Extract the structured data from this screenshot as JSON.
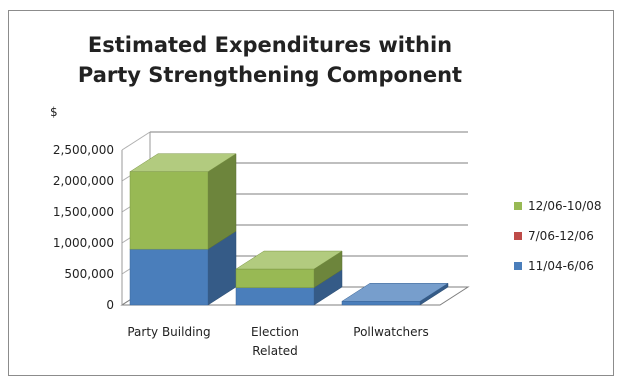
{
  "chart_data": {
    "type": "bar",
    "stacked": true,
    "three_d": true,
    "title": "Estimated Expenditures within Party Strengthening Component",
    "title_lines": [
      "Estimated Expenditures within",
      "Party Strengthening Component"
    ],
    "ylabel": "$",
    "ylim": [
      0,
      2500000
    ],
    "yticks": [
      "0",
      "500,000",
      "1,000,000",
      "1,500,000",
      "2,000,000",
      "2,500,000"
    ],
    "ytick_values": [
      0,
      500000,
      1000000,
      1500000,
      2000000,
      2500000
    ],
    "categories": [
      "Party Building",
      "Election Related",
      "Pollwatchers"
    ],
    "category_lines": [
      [
        "Party Building"
      ],
      [
        "Election",
        "Related"
      ],
      [
        "Pollwatchers"
      ]
    ],
    "series": [
      {
        "name": "11/04-6/06",
        "values": [
          900000,
          280000,
          60000
        ],
        "color": "#4a7ebb"
      },
      {
        "name": "7/06-12/06",
        "values": [
          0,
          0,
          0
        ],
        "color": "#be4b48"
      },
      {
        "name": "12/06-10/08",
        "values": [
          1250000,
          300000,
          0
        ],
        "color": "#98b954"
      }
    ],
    "legend_order": [
      2,
      1,
      0
    ],
    "legend_position": "right",
    "grid": true
  }
}
